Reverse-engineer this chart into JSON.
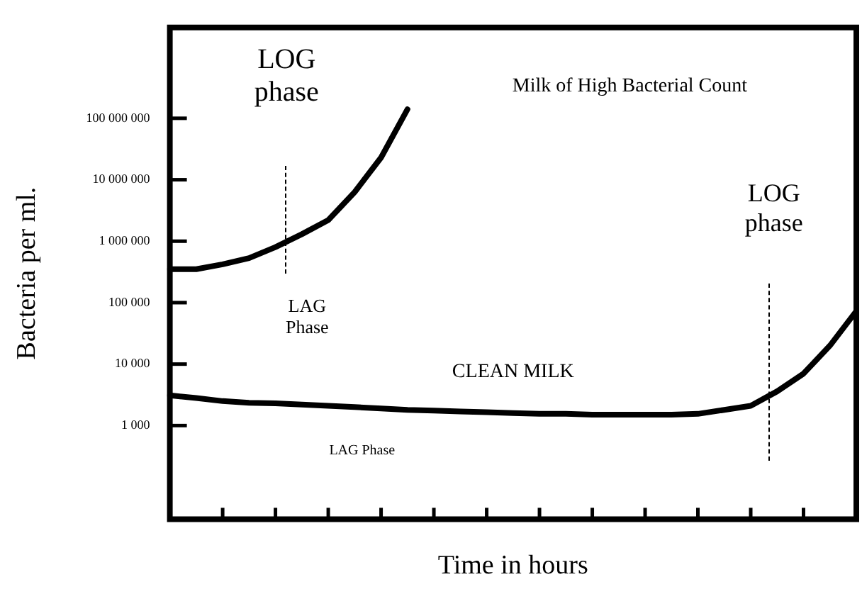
{
  "chart_data": {
    "type": "line",
    "xlabel": "Time in hours",
    "ylabel": "Bacteria per ml.",
    "log": true,
    "tick_labels": "y",
    "categories": [
      null,
      null,
      null,
      null,
      null,
      null,
      null,
      null,
      null,
      null,
      null,
      null,
      null,
      null,
      null,
      null,
      null,
      null,
      null,
      null,
      null,
      null,
      null,
      null,
      null,
      null,
      null
    ],
    "ylim": [
      30,
      3000000000
    ],
    "yticks": [
      {
        "value": 1000,
        "label": "1 000"
      },
      {
        "value": 10000,
        "label": "10 000"
      },
      {
        "value": 100000,
        "label": "100 000"
      },
      {
        "value": 1000000,
        "label": "1 000 000"
      },
      {
        "value": 10000000,
        "label": "10 000 000"
      },
      {
        "value": 100000000,
        "label": "100 000 000"
      }
    ],
    "series": [
      {
        "color": "#000000",
        "values": [
          350000,
          350000,
          420000,
          530000,
          800000,
          1300000,
          2200000,
          6300000,
          23000000,
          140000000,
          null,
          null,
          null,
          null,
          null,
          null,
          null,
          null,
          null,
          null,
          null,
          null,
          null,
          null,
          null,
          null,
          null
        ]
      },
      {
        "color": "#000000",
        "values": [
          3100,
          2800,
          2500,
          2350,
          2300,
          2200,
          2100,
          2000,
          1900,
          1800,
          1750,
          1700,
          1650,
          1600,
          1550,
          1550,
          1500,
          1500,
          1500,
          1500,
          1550,
          1800,
          2100,
          3600,
          7000,
          20000,
          73000
        ]
      }
    ],
    "annotations": [
      "LOG\nphase",
      "LAG\nPhase",
      "Milk of High Bacterial Count",
      "CLEAN MILK",
      "LAG Phase",
      "LOG\nphase"
    ]
  }
}
